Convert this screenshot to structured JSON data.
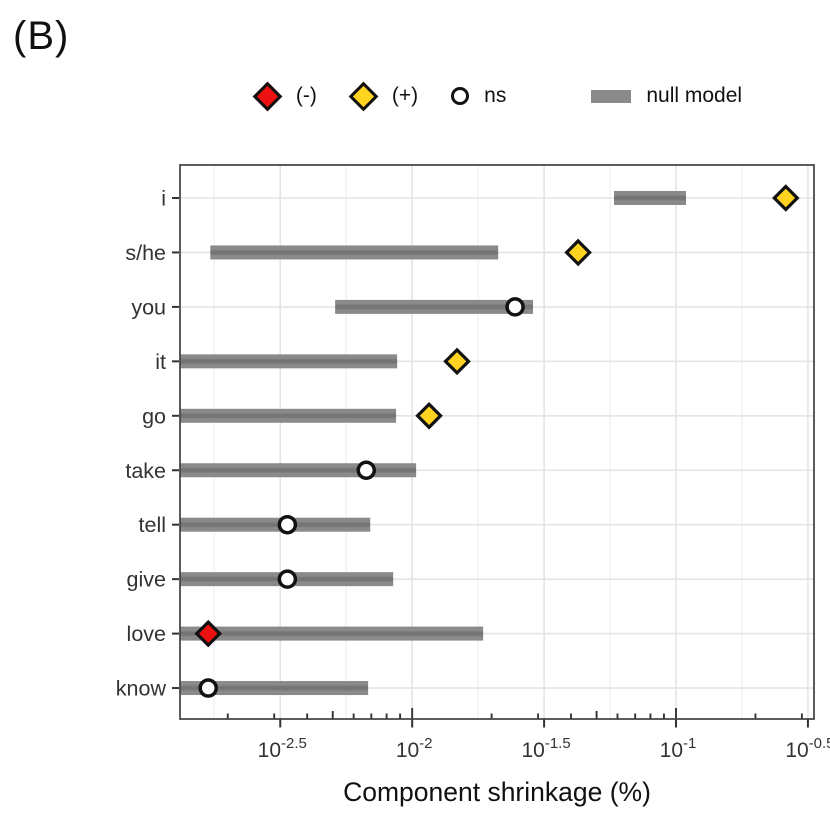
{
  "panel_label": "(B)",
  "legend": {
    "position": "top-center",
    "items": [
      {
        "id": "negative",
        "marker": "diamond-red",
        "label": "(-)"
      },
      {
        "id": "positive",
        "marker": "diamond-yellow",
        "label": "(+)"
      },
      {
        "id": "ns",
        "marker": "open-circle",
        "label": "ns"
      },
      {
        "id": "null-model",
        "marker": "gray-bar",
        "label": "null model"
      }
    ]
  },
  "colors": {
    "negative": "#ee1111",
    "positive": "#ffd320",
    "ns": "#ffffff",
    "marker_stroke": "#111111",
    "bar": "#8a8a8a",
    "bar_dark": "#757575",
    "grid_major": "#e4e4e4",
    "grid_minor": "#f1f1f1",
    "panel_border": "#404040",
    "axis_text": "#333333",
    "title_text": "#111111",
    "tick": "#333333"
  },
  "chart_data": {
    "type": "dot-range",
    "orientation": "horizontal",
    "title": "",
    "xlabel": "Component shrinkage (%)",
    "ylabel": "",
    "x_scale": "log10",
    "grid": "on",
    "legend_position": "top",
    "x_domain_exp": [
      -2.88,
      -0.477
    ],
    "x_ticks": [
      {
        "exp": -2.5,
        "mantissa": "10",
        "exponent": "-2.5"
      },
      {
        "exp": -2.0,
        "mantissa": "10",
        "exponent": "-2"
      },
      {
        "exp": -1.5,
        "mantissa": "10",
        "exponent": "-1.5"
      },
      {
        "exp": -1.0,
        "mantissa": "10",
        "exponent": "-1"
      },
      {
        "exp": -0.5,
        "mantissa": "10",
        "exponent": "-0.5"
      }
    ],
    "categories": [
      "i",
      "s/he",
      "you",
      "it",
      "go",
      "take",
      "tell",
      "give",
      "love",
      "know"
    ],
    "null_model_ranges_exp": [
      [
        -1.235,
        -0.962
      ],
      [
        -2.765,
        -1.674
      ],
      [
        -2.292,
        -1.542
      ],
      [
        -2.88,
        -2.057
      ],
      [
        -2.88,
        -2.061
      ],
      [
        -2.88,
        -1.985
      ],
      [
        -2.88,
        -2.159
      ],
      [
        -2.88,
        -2.072
      ],
      [
        -2.88,
        -1.731
      ],
      [
        -2.88,
        -2.167
      ]
    ],
    "points": [
      {
        "category": "i",
        "exp": -0.584,
        "sig": "+"
      },
      {
        "category": "s/he",
        "exp": -1.371,
        "sig": "+"
      },
      {
        "category": "you",
        "exp": -1.61,
        "sig": "ns"
      },
      {
        "category": "it",
        "exp": -1.83,
        "sig": "+"
      },
      {
        "category": "go",
        "exp": -1.936,
        "sig": "+"
      },
      {
        "category": "take",
        "exp": -2.174,
        "sig": "ns"
      },
      {
        "category": "tell",
        "exp": -2.473,
        "sig": "ns"
      },
      {
        "category": "give",
        "exp": -2.473,
        "sig": "ns"
      },
      {
        "category": "love",
        "exp": -2.773,
        "sig": "-"
      },
      {
        "category": "know",
        "exp": -2.773,
        "sig": "ns"
      }
    ]
  }
}
